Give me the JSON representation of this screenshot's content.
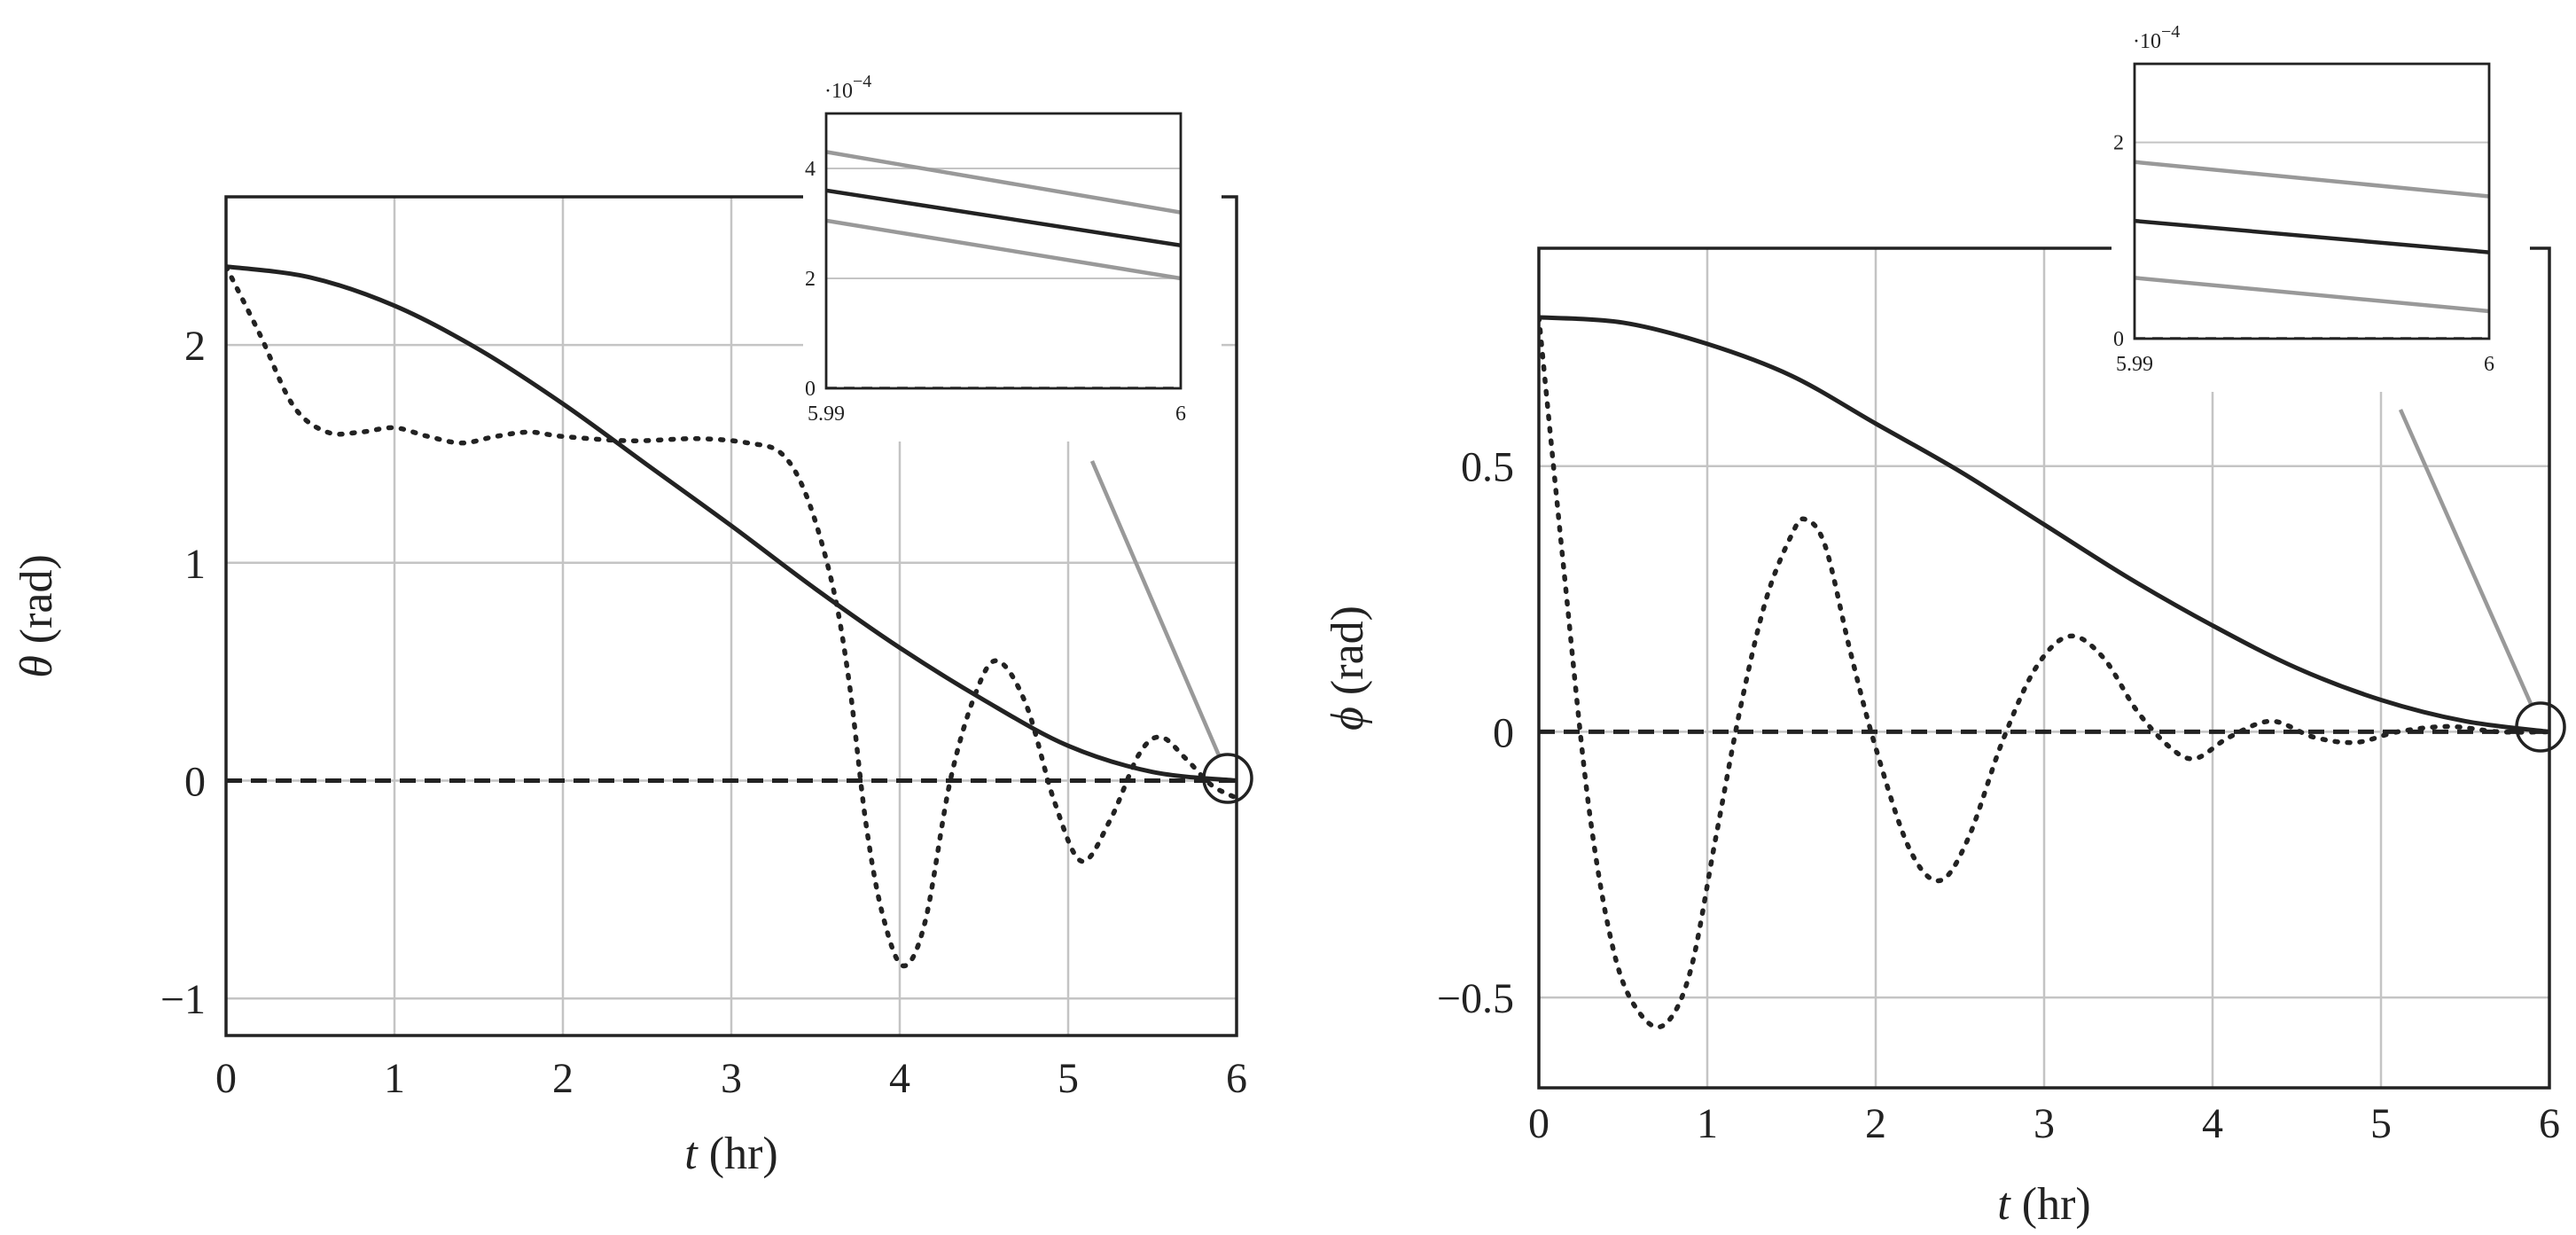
{
  "chart_data": [
    {
      "type": "line",
      "xlabel": "t (hr)",
      "ylabel": "θ (rad)",
      "xlim": [
        0,
        6
      ],
      "ylim": [
        -1.17,
        2.68
      ],
      "xticks": [
        0,
        1,
        2,
        3,
        4,
        5,
        6
      ],
      "yticks": [
        -1,
        0,
        1,
        2
      ],
      "grid": true,
      "series": [
        {
          "style": "solid",
          "color": "#222222",
          "x": [
            0,
            0.5,
            1,
            1.5,
            2,
            2.5,
            3,
            3.5,
            4,
            4.5,
            5,
            5.5,
            6
          ],
          "y": [
            2.36,
            2.31,
            2.18,
            1.98,
            1.73,
            1.45,
            1.17,
            0.88,
            0.61,
            0.37,
            0.16,
            0.04,
            0.0
          ]
        },
        {
          "style": "dotted",
          "color": "#222222",
          "x": [
            0,
            0.2,
            0.4,
            0.6,
            0.8,
            1.0,
            1.2,
            1.4,
            1.6,
            1.8,
            2.0,
            2.4,
            2.8,
            3.1,
            3.3,
            3.45,
            3.6,
            3.7,
            3.8,
            3.9,
            4.02,
            4.15,
            4.3,
            4.45,
            4.58,
            4.75,
            4.92,
            5.08,
            5.25,
            5.42,
            5.55,
            5.7,
            5.85,
            6.0
          ],
          "y": [
            2.36,
            2.05,
            1.72,
            1.6,
            1.6,
            1.62,
            1.58,
            1.55,
            1.58,
            1.6,
            1.58,
            1.56,
            1.57,
            1.55,
            1.5,
            1.3,
            0.9,
            0.45,
            -0.2,
            -0.62,
            -0.85,
            -0.65,
            0.0,
            0.4,
            0.55,
            0.35,
            -0.1,
            -0.37,
            -0.18,
            0.12,
            0.2,
            0.1,
            -0.02,
            -0.08
          ]
        },
        {
          "style": "dashed",
          "color": "#222222",
          "x": [
            0,
            6
          ],
          "y": [
            0,
            0
          ]
        }
      ],
      "inset": {
        "exponent_base": "·10",
        "exponent_power": "−4",
        "xlim": [
          5.99,
          6
        ],
        "ylim": [
          0,
          5
        ],
        "xtick_labels": [
          "5.99",
          "6"
        ],
        "ytick_labels": [
          "0",
          "2",
          "4"
        ],
        "series": [
          {
            "style": "solid",
            "color": "#999999",
            "x": [
              5.99,
              6
            ],
            "y": [
              4.3,
              3.2
            ]
          },
          {
            "style": "solid",
            "color": "#222222",
            "x": [
              5.99,
              6
            ],
            "y": [
              3.6,
              2.6
            ]
          },
          {
            "style": "solid",
            "color": "#999999",
            "x": [
              5.99,
              6
            ],
            "y": [
              3.05,
              2.0
            ]
          },
          {
            "style": "dashed",
            "color": "#222222",
            "x": [
              5.99,
              6
            ],
            "y": [
              0,
              0
            ]
          }
        ]
      }
    },
    {
      "type": "line",
      "xlabel": "t (hr)",
      "ylabel": "ϕ (rad)",
      "xlim": [
        0,
        6
      ],
      "ylim": [
        -0.67,
        0.91
      ],
      "xticks": [
        0,
        1,
        2,
        3,
        4,
        5,
        6
      ],
      "yticks": [
        -0.5,
        0,
        0.5
      ],
      "ytick_labels": [
        "−0.5",
        "0",
        "0.5"
      ],
      "grid": true,
      "series": [
        {
          "style": "solid",
          "color": "#222222",
          "x": [
            0,
            0.5,
            1,
            1.5,
            2,
            2.5,
            3,
            3.5,
            4,
            4.5,
            5,
            5.5,
            6
          ],
          "y": [
            0.78,
            0.77,
            0.73,
            0.67,
            0.58,
            0.49,
            0.39,
            0.29,
            0.2,
            0.12,
            0.06,
            0.02,
            0.0
          ]
        },
        {
          "style": "dotted",
          "color": "#222222",
          "x": [
            0,
            0.15,
            0.3,
            0.45,
            0.6,
            0.75,
            0.9,
            1.05,
            1.2,
            1.35,
            1.5,
            1.58,
            1.7,
            1.85,
            2.0,
            2.2,
            2.38,
            2.55,
            2.75,
            2.95,
            3.15,
            3.35,
            3.55,
            3.75,
            3.9,
            4.1,
            4.35,
            4.6,
            4.85,
            5.1,
            5.4,
            5.7,
            6.0
          ],
          "y": [
            0.78,
            0.3,
            -0.15,
            -0.42,
            -0.53,
            -0.55,
            -0.45,
            -0.2,
            0.05,
            0.25,
            0.37,
            0.4,
            0.35,
            0.15,
            -0.03,
            -0.22,
            -0.28,
            -0.2,
            -0.02,
            0.12,
            0.18,
            0.14,
            0.04,
            -0.03,
            -0.05,
            -0.01,
            0.02,
            -0.01,
            -0.02,
            0.0,
            0.01,
            0.0,
            0.0
          ]
        },
        {
          "style": "dashed",
          "color": "#222222",
          "x": [
            0,
            6
          ],
          "y": [
            0,
            0
          ]
        }
      ],
      "inset": {
        "exponent_base": "·10",
        "exponent_power": "−4",
        "xlim": [
          5.99,
          6
        ],
        "ylim": [
          0,
          2.8
        ],
        "xtick_labels": [
          "5.99",
          "6"
        ],
        "ytick_labels": [
          "0",
          "2"
        ],
        "series": [
          {
            "style": "solid",
            "color": "#999999",
            "x": [
              5.99,
              6
            ],
            "y": [
              1.8,
              1.45
            ]
          },
          {
            "style": "solid",
            "color": "#222222",
            "x": [
              5.99,
              6
            ],
            "y": [
              1.2,
              0.88
            ]
          },
          {
            "style": "solid",
            "color": "#999999",
            "x": [
              5.99,
              6
            ],
            "y": [
              0.62,
              0.28
            ]
          },
          {
            "style": "dashed",
            "color": "#222222",
            "x": [
              5.99,
              6
            ],
            "y": [
              0,
              0
            ]
          }
        ]
      }
    }
  ]
}
